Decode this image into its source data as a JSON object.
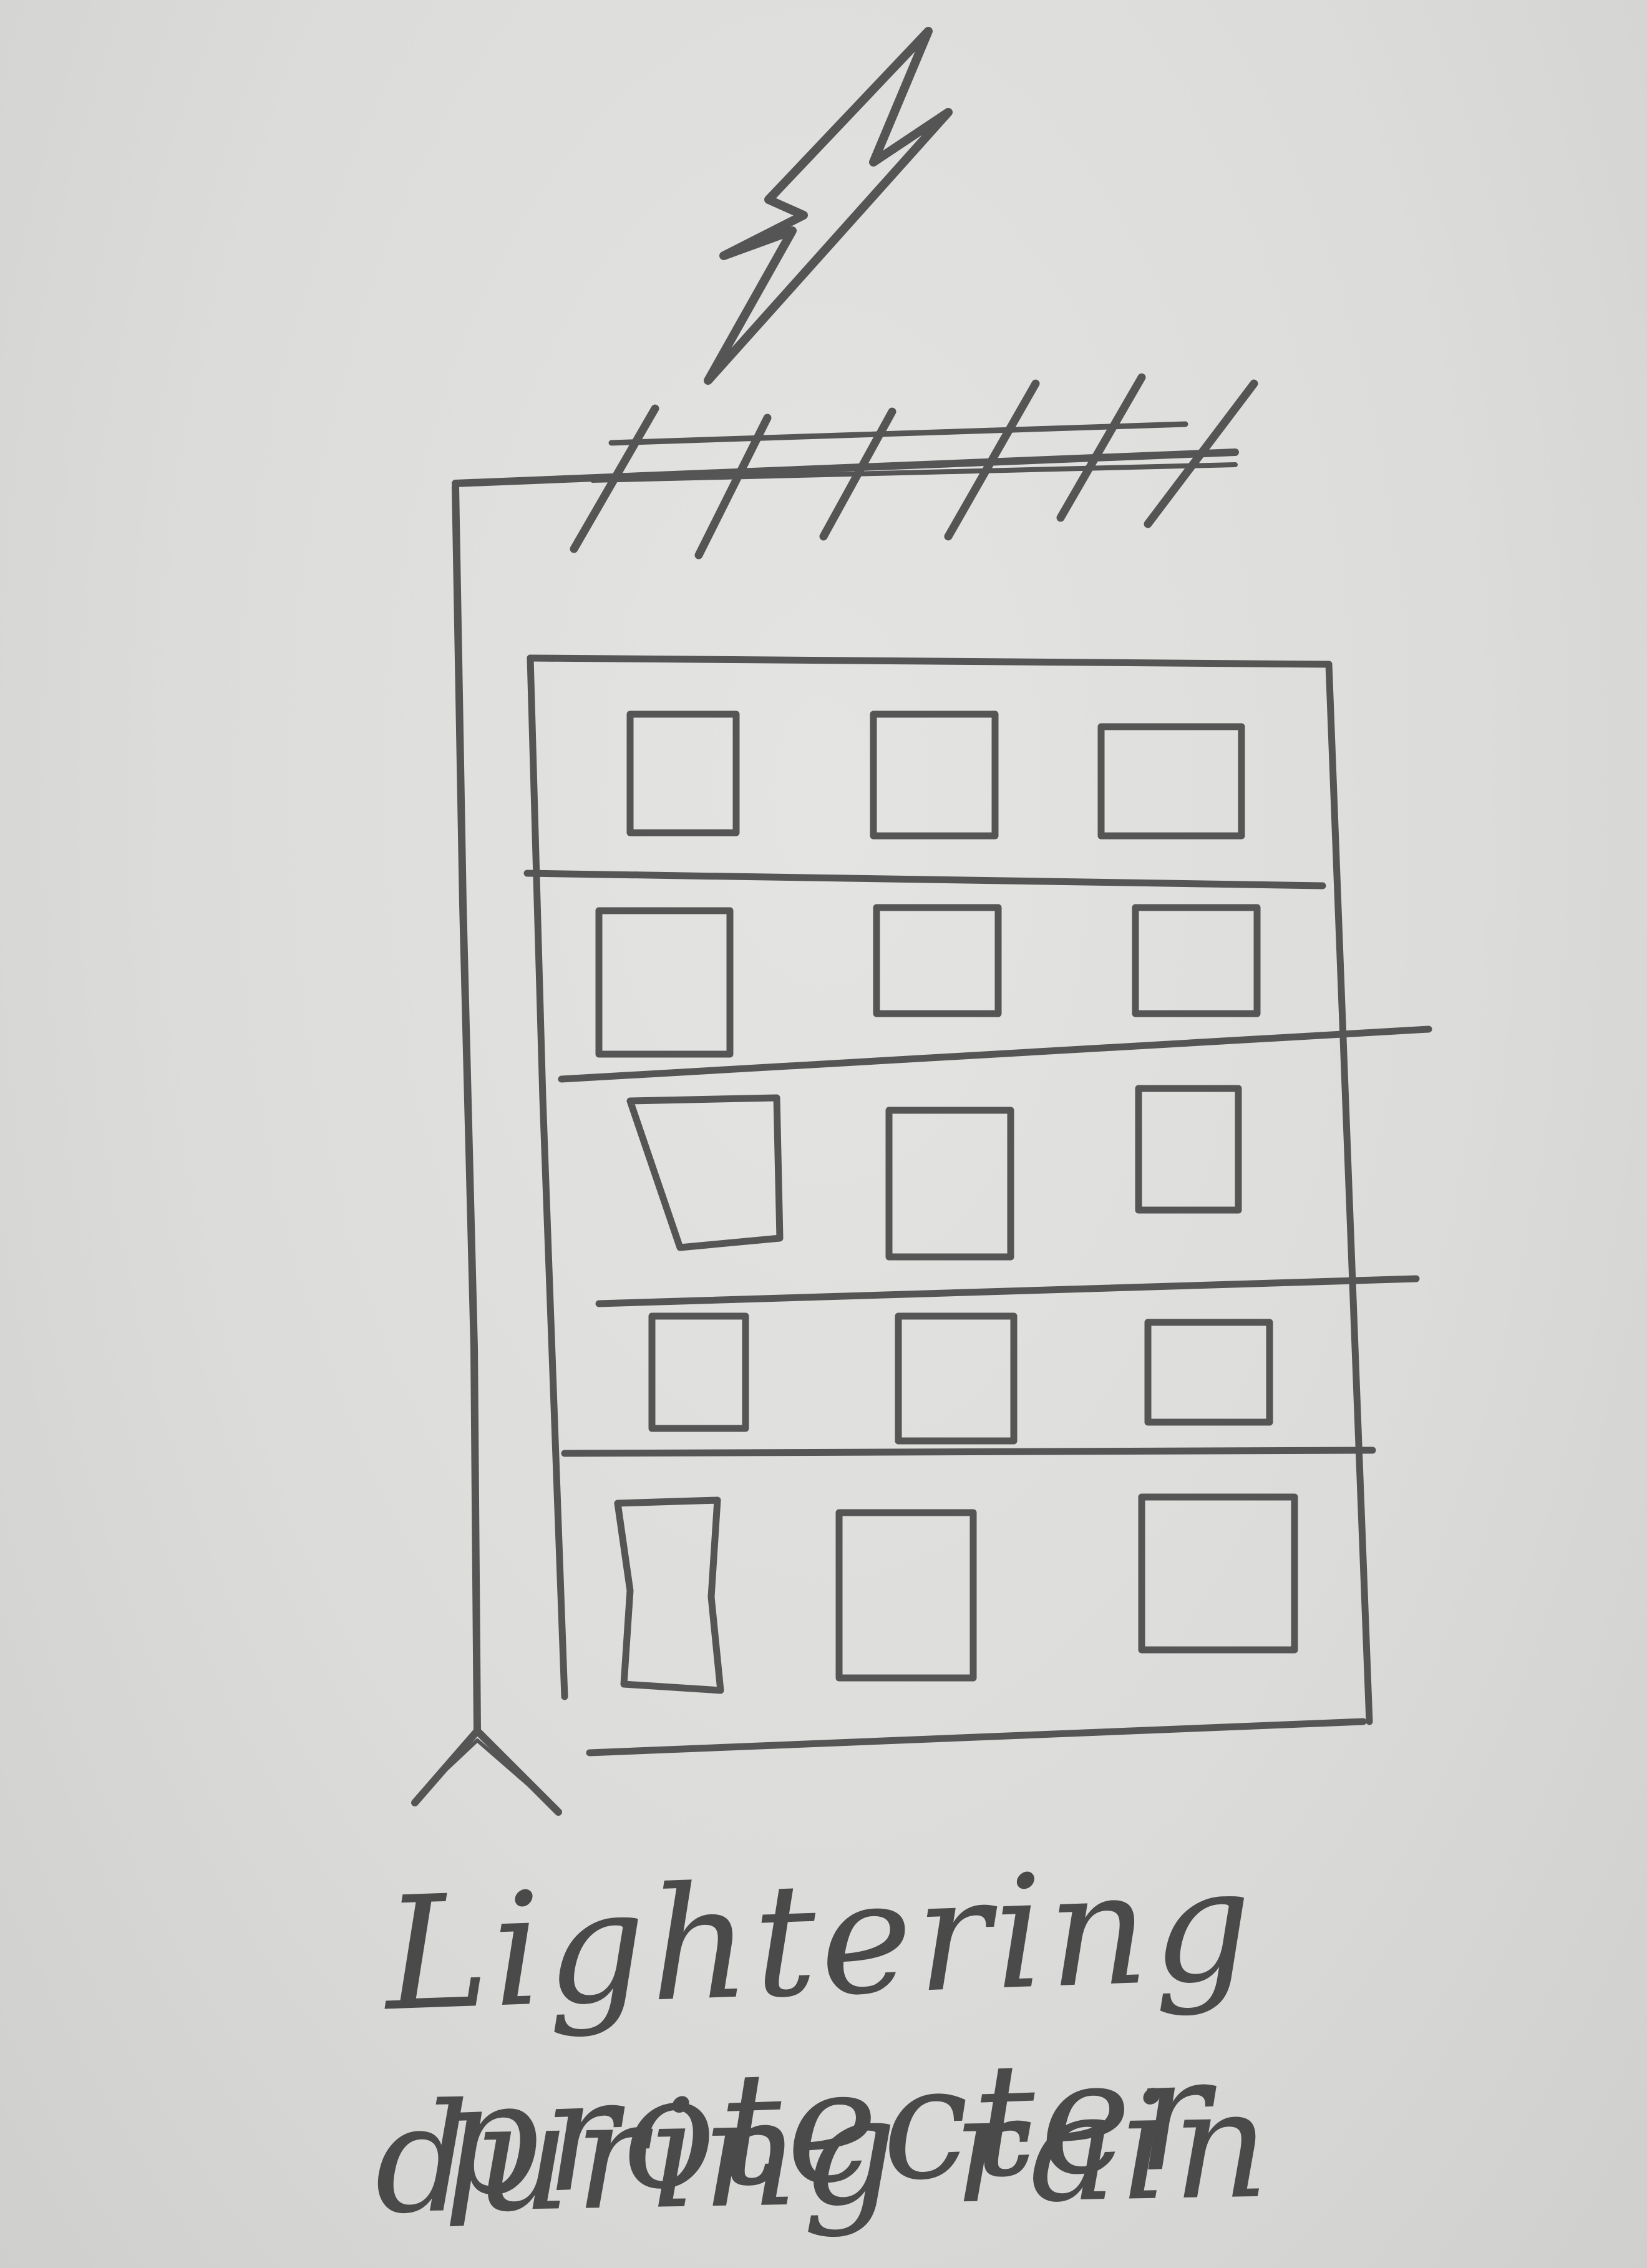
{
  "sketch": {
    "medium": "pencil on paper",
    "stroke_color": "#555555",
    "paper_color": "#dcdcda"
  },
  "elements": {
    "lightning": "lightning-bolt",
    "arrester_spikes": 6,
    "building_floors": 5,
    "windows_per_floor": 3,
    "down_conductor": "wire from roof to ground",
    "earthing": "ground-terminal"
  },
  "caption": {
    "line1": "Lightering protecter",
    "line2": "during rain"
  }
}
